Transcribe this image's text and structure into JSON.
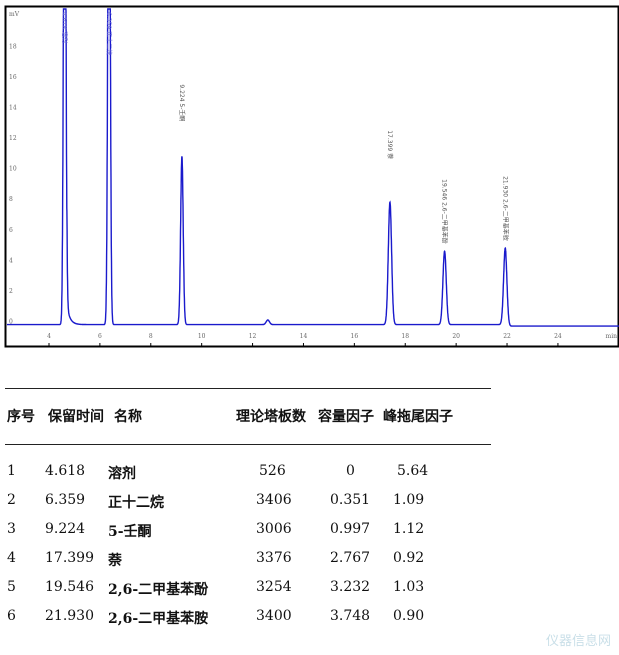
{
  "chart_data": {
    "type": "line",
    "title": "",
    "xlabel": "min",
    "ylabel": "mV",
    "xlim": [
      2.35,
      26.4
    ],
    "ylim": [
      -1.4,
      20.7
    ],
    "xticks": [
      4,
      6,
      8,
      10,
      12,
      14,
      16,
      18,
      20,
      22,
      24
    ],
    "yticks": [
      0,
      2,
      4,
      6,
      8,
      10,
      12,
      14,
      16,
      18
    ],
    "grid": false,
    "line_color": "#1a1acc",
    "peaks": [
      {
        "rt": 4.618,
        "height": 40,
        "label": "4.618 溶剂",
        "color": "#6a6ad8"
      },
      {
        "rt": 6.359,
        "height": 40,
        "label": "6.359 正十二烷",
        "color": "#6a6ad8"
      },
      {
        "rt": 9.224,
        "height": 11.0,
        "label": "9.224 5-壬酮",
        "color": "#555"
      },
      {
        "rt": 12.6,
        "height": 0.3,
        "label": "",
        "color": "#555"
      },
      {
        "rt": 17.399,
        "height": 8.0,
        "label": "17.399 萘",
        "color": "#555"
      },
      {
        "rt": 19.546,
        "height": 4.8,
        "label": "19.546 2,6-二甲基苯酚",
        "color": "#555"
      },
      {
        "rt": 21.93,
        "height": 5.0,
        "label": "21.930 2,6-二甲基苯胺",
        "color": "#555"
      }
    ]
  },
  "table": {
    "headers": [
      "序号",
      "保留时间",
      "名称",
      "理论塔板数",
      "容量因子",
      "峰拖尾因子"
    ],
    "rows": [
      [
        "1",
        "4.618",
        "溶剂",
        "526",
        "0",
        "5.64"
      ],
      [
        "2",
        "6.359",
        "正十二烷",
        "3406",
        "0.351",
        "1.09"
      ],
      [
        "3",
        "9.224",
        "5-壬酮",
        "3006",
        "0.997",
        "1.12"
      ],
      [
        "4",
        "17.399",
        "萘",
        "3376",
        "2.767",
        "0.92"
      ],
      [
        "5",
        "19.546",
        "2,6-二甲基苯酚",
        "3254",
        "3.232",
        "1.03"
      ],
      [
        "6",
        "21.930",
        "2,6-二甲基苯胺",
        "3400",
        "3.748",
        "0.90"
      ]
    ]
  },
  "watermark": "仪器信息网"
}
